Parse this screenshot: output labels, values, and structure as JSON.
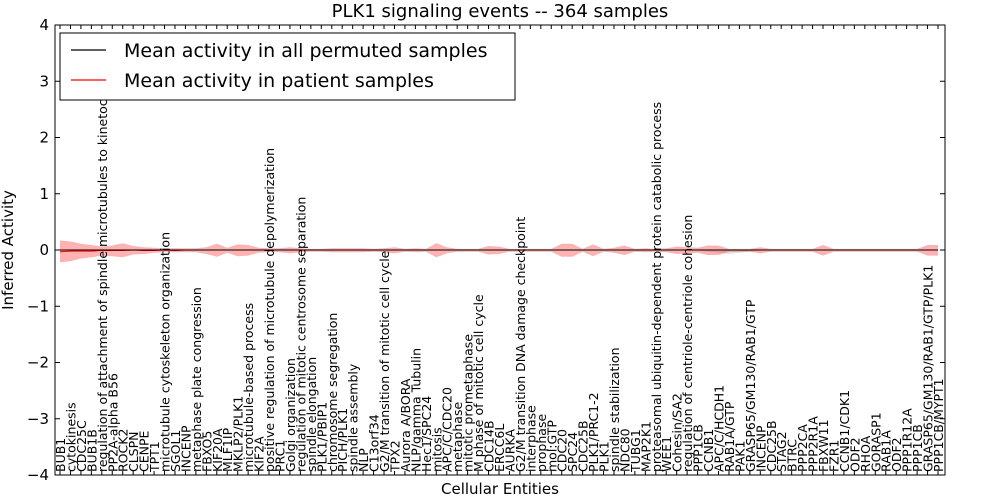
{
  "chart_data": {
    "type": "line",
    "title": "PLK1 signaling events -- 364 samples",
    "xlabel": "Cellular Entities",
    "ylabel": "Inferred Activity",
    "ylim": [
      -4,
      4
    ],
    "yticks": [
      4,
      3,
      2,
      1,
      0,
      -1,
      -2,
      -3,
      -4
    ],
    "ytick_labels": [
      "4",
      "3",
      "2",
      "1",
      "0",
      "−1",
      "−2",
      "−3",
      "−4"
    ],
    "grid": false,
    "legend": {
      "position": "top-left",
      "entries": [
        {
          "label": "Mean activity in all permuted samples",
          "color": "#000000"
        },
        {
          "label": "Mean activity in patient samples",
          "color": "#ff0000"
        }
      ]
    },
    "categories": [
      "BUB1",
      "cytokinesis",
      "CDC25C",
      "BUB1B",
      "regulation of attachment of spindle microtubules to kinetochore",
      "PP2A-alpha B56",
      "ROCK2",
      "CLSPN",
      "CENPE",
      "TPT1",
      "microtubule cytoskeleton organization",
      "SGOL1",
      "INCENP",
      "metaphase plate congression",
      "FBXO5",
      "KIF20A",
      "MLF1IP",
      "MKLP2/PLK1",
      "microtubule-based process",
      "KIF2A",
      "positive regulation of microtubule depolymerization",
      "PRC1",
      "Golgi organization",
      "regulation of mitotic centrosome separation",
      "spindle elongation",
      "PLK1/PBIP1",
      "chromosome segregation",
      "PICH/PLK1",
      "spindle assembly",
      "NLP",
      "C13orf34",
      "G2/M transition of mitotic cell cycle",
      "TPX2",
      "Aurora A/BORA",
      "NLP/gamma Tubulin",
      "Hec1/SPC24",
      "mitosis",
      "APC/C/CDC20",
      "metaphase",
      "mitotic prometaphase",
      "M phase of mitotic cell cycle",
      "CDC14B",
      "ERCC6L",
      "AURKA",
      "G2/M transition DNA damage checkpoint",
      "interphase",
      "prophase",
      "mol:GTP",
      "CDC20",
      "SPC24",
      "CDC25B",
      "PLK1/PRC1-2",
      "PLK1",
      "spindle stabilization",
      "NDC80",
      "TUBG1",
      "MAP2K1",
      "proteasomal ubiquitin-dependent protein catabolic process",
      "WEE1",
      "Cohesin/SA2",
      "regulation of centriole-centriole cohesion",
      "PPP1CB",
      "CCNB1",
      "APC/C/HCDH1",
      "RAB1A/GTP",
      "PAK1",
      "GRASP65/GM130/RAB1/GTP",
      "INCENP",
      "CDC25B",
      "STAG2",
      "BTRC",
      "PPP2CA",
      "PPP2R1A",
      "FBXW11",
      "FZR1",
      "CCNB1/CDK1",
      "ODF2",
      "RHOA",
      "GORASP1",
      "RAB1A",
      "ODF2",
      "PPP1R12A",
      "PPP1CB",
      "GRASP65/GM130/RAB1/GTP/PLK1",
      "PPP1CB/MYPT1"
    ],
    "series": [
      {
        "name": "Mean activity in patient samples",
        "color": "#ff0000",
        "values": [
          -0.03,
          -0.02,
          -0.02,
          -0.02,
          -0.01,
          -0.01,
          -0.01,
          0.0,
          -0.01,
          -0.01,
          0.0,
          -0.01,
          0.0,
          0.0,
          0.0,
          0.0,
          0.0,
          0.0,
          0.0,
          0.0,
          0.0,
          0.0,
          0.0,
          0.0,
          0.0,
          0.0,
          0.0,
          0.0,
          0.0,
          0.0,
          0.0,
          0.0,
          0.0,
          0.0,
          0.0,
          0.0,
          0.0,
          0.0,
          0.0,
          0.0,
          0.0,
          0.0,
          0.0,
          0.0,
          0.0,
          0.0,
          0.0,
          0.0,
          0.0,
          0.0,
          0.0,
          0.0,
          0.0,
          0.0,
          0.0,
          0.0,
          0.0,
          0.0,
          0.0,
          0.0,
          0.0,
          0.0,
          0.0,
          0.0,
          0.0,
          0.0,
          0.0,
          0.0,
          0.0,
          0.0,
          0.0,
          0.0,
          0.0,
          0.0,
          0.0,
          0.0,
          0.0,
          0.0,
          0.0,
          0.0,
          0.0,
          0.0,
          0.0,
          0.0,
          0.0
        ],
        "upper": [
          0.17,
          0.15,
          0.11,
          0.09,
          0.06,
          0.08,
          0.12,
          0.07,
          0.05,
          0.04,
          0.03,
          0.03,
          0.03,
          0.03,
          0.05,
          0.11,
          0.04,
          0.1,
          0.09,
          0.04,
          0.03,
          0.03,
          0.05,
          0.03,
          0.02,
          0.02,
          0.03,
          0.03,
          0.03,
          0.03,
          0.02,
          0.03,
          0.05,
          0.02,
          0.03,
          0.02,
          0.12,
          0.05,
          0.02,
          0.02,
          0.02,
          0.07,
          0.06,
          0.02,
          0.02,
          0.02,
          0.02,
          0.02,
          0.11,
          0.11,
          0.02,
          0.1,
          0.02,
          0.04,
          0.08,
          0.02,
          0.03,
          0.02,
          0.03,
          0.06,
          0.05,
          0.04,
          0.08,
          0.08,
          0.02,
          0.02,
          0.02,
          0.05,
          0.02,
          0.02,
          0.02,
          0.02,
          0.02,
          0.09,
          0.02,
          0.02,
          0.02,
          0.02,
          0.02,
          0.02,
          0.02,
          0.02,
          0.02,
          0.09,
          0.09
        ],
        "lower": [
          -0.22,
          -0.2,
          -0.15,
          -0.13,
          -0.1,
          -0.11,
          -0.13,
          -0.08,
          -0.07,
          -0.05,
          -0.04,
          -0.04,
          -0.04,
          -0.04,
          -0.07,
          -0.12,
          -0.05,
          -0.11,
          -0.1,
          -0.05,
          -0.04,
          -0.04,
          -0.06,
          -0.04,
          -0.03,
          -0.03,
          -0.04,
          -0.04,
          -0.04,
          -0.04,
          -0.03,
          -0.04,
          -0.06,
          -0.03,
          -0.04,
          -0.03,
          -0.13,
          -0.06,
          -0.03,
          -0.03,
          -0.03,
          -0.08,
          -0.07,
          -0.03,
          -0.03,
          -0.03,
          -0.03,
          -0.03,
          -0.12,
          -0.12,
          -0.03,
          -0.11,
          -0.03,
          -0.05,
          -0.09,
          -0.03,
          -0.04,
          -0.03,
          -0.04,
          -0.07,
          -0.06,
          -0.05,
          -0.09,
          -0.09,
          -0.03,
          -0.03,
          -0.03,
          -0.06,
          -0.03,
          -0.03,
          -0.03,
          -0.03,
          -0.03,
          -0.1,
          -0.03,
          -0.03,
          -0.03,
          -0.03,
          -0.03,
          -0.03,
          -0.03,
          -0.03,
          -0.03,
          -0.1,
          -0.1
        ]
      },
      {
        "name": "Mean activity in all permuted samples",
        "color": "#000000",
        "values": [
          0.0,
          0.0,
          0.0,
          0.0,
          0.0,
          0.0,
          0.0,
          0.0,
          0.0,
          0.0,
          0.0,
          0.0,
          0.0,
          0.0,
          0.0,
          0.0,
          0.0,
          0.0,
          0.0,
          0.0,
          0.0,
          0.0,
          0.0,
          0.0,
          0.0,
          0.0,
          0.0,
          0.0,
          0.0,
          0.0,
          0.0,
          0.0,
          0.0,
          0.0,
          0.0,
          0.0,
          0.0,
          0.0,
          0.0,
          0.0,
          0.0,
          0.0,
          0.0,
          0.0,
          0.0,
          0.0,
          0.0,
          0.0,
          0.0,
          0.0,
          0.0,
          0.0,
          0.0,
          0.0,
          0.0,
          0.0,
          0.0,
          0.0,
          0.0,
          0.0,
          0.0,
          0.0,
          0.0,
          0.0,
          0.0,
          0.0,
          0.0,
          0.0,
          0.0,
          0.0,
          0.0,
          0.0,
          0.0,
          0.0,
          0.0,
          0.0,
          0.0,
          0.0,
          0.0,
          0.0,
          0.0,
          0.0,
          0.0,
          0.0,
          0.0
        ],
        "upper": [
          0.01,
          0.01,
          0.01,
          0.01,
          0.01,
          0.01,
          0.01,
          0.01,
          0.01,
          0.01,
          0.01,
          0.01,
          0.01,
          0.01,
          0.01,
          0.01,
          0.01,
          0.01,
          0.01,
          0.01,
          0.01,
          0.01,
          0.01,
          0.01,
          0.01,
          0.01,
          0.01,
          0.01,
          0.01,
          0.01,
          0.01,
          0.01,
          0.01,
          0.01,
          0.01,
          0.01,
          0.01,
          0.01,
          0.01,
          0.01,
          0.01,
          0.01,
          0.01,
          0.01,
          0.01,
          0.01,
          0.01,
          0.01,
          0.01,
          0.01,
          0.01,
          0.01,
          0.01,
          0.01,
          0.01,
          0.01,
          0.01,
          0.01,
          0.01,
          0.01,
          0.01,
          0.01,
          0.01,
          0.01,
          0.01,
          0.01,
          0.01,
          0.01,
          0.01,
          0.01,
          0.01,
          0.01,
          0.01,
          0.01,
          0.01,
          0.01,
          0.01,
          0.01,
          0.01,
          0.01,
          0.01,
          0.01,
          0.01,
          0.01,
          0.01
        ],
        "lower": [
          -0.01,
          -0.01,
          -0.01,
          -0.01,
          -0.01,
          -0.01,
          -0.01,
          -0.01,
          -0.01,
          -0.01,
          -0.01,
          -0.01,
          -0.01,
          -0.01,
          -0.01,
          -0.01,
          -0.01,
          -0.01,
          -0.01,
          -0.01,
          -0.01,
          -0.01,
          -0.01,
          -0.01,
          -0.01,
          -0.01,
          -0.01,
          -0.01,
          -0.01,
          -0.01,
          -0.01,
          -0.01,
          -0.01,
          -0.01,
          -0.01,
          -0.01,
          -0.01,
          -0.01,
          -0.01,
          -0.01,
          -0.01,
          -0.01,
          -0.01,
          -0.01,
          -0.01,
          -0.01,
          -0.01,
          -0.01,
          -0.01,
          -0.01,
          -0.01,
          -0.01,
          -0.01,
          -0.01,
          -0.01,
          -0.01,
          -0.01,
          -0.01,
          -0.01,
          -0.01,
          -0.01,
          -0.01,
          -0.03,
          -0.05,
          -0.07,
          -0.05,
          -0.03,
          -0.01,
          -0.01,
          -0.01,
          -0.01,
          -0.01,
          -0.01,
          -0.01,
          -0.01,
          -0.01,
          -0.01,
          -0.01,
          -0.01,
          -0.01,
          -0.01,
          -0.01,
          -0.01,
          -0.01,
          -0.01
        ]
      }
    ]
  }
}
